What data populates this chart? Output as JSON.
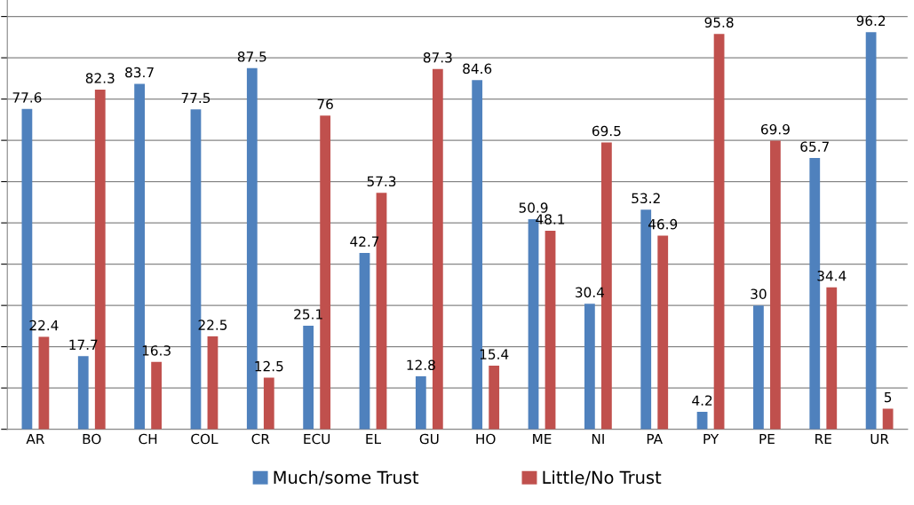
{
  "chart_data": {
    "type": "bar",
    "categories": [
      "AR",
      "BO",
      "CH",
      "COL",
      "CR",
      "ECU",
      "EL",
      "GU",
      "HO",
      "ME",
      "NI",
      "PA",
      "PY",
      "PE",
      "RE",
      "UR"
    ],
    "series": [
      {
        "name": "Much/some Trust",
        "color": "#4f81bd",
        "values": [
          77.6,
          17.7,
          83.7,
          77.5,
          87.5,
          25.1,
          42.7,
          12.8,
          84.6,
          50.9,
          30.4,
          53.2,
          4.2,
          30,
          65.7,
          96.2
        ]
      },
      {
        "name": "Little/No Trust",
        "color": "#c0504d",
        "values": [
          22.4,
          82.3,
          16.3,
          22.5,
          12.5,
          76,
          57.3,
          87.3,
          15.4,
          48.1,
          69.5,
          46.9,
          95.8,
          69.9,
          34.4,
          5
        ]
      }
    ],
    "data_labels": true,
    "ylim": [
      0,
      104
    ],
    "yticks": [
      {
        "value": 0,
        "label": null
      },
      {
        "value": 10,
        "label": null
      },
      {
        "value": 20,
        "label": null
      },
      {
        "value": 30,
        "label": null
      },
      {
        "value": 40,
        "label": null
      },
      {
        "value": 50,
        "label": null
      },
      {
        "value": 60,
        "label": null
      },
      {
        "value": 70,
        "label": null
      },
      {
        "value": 80,
        "label": null
      },
      {
        "value": 90,
        "label": null
      },
      {
        "value": 100,
        "label": null
      }
    ],
    "grid": "y",
    "tick_labels": "x",
    "legend": "bottom"
  }
}
